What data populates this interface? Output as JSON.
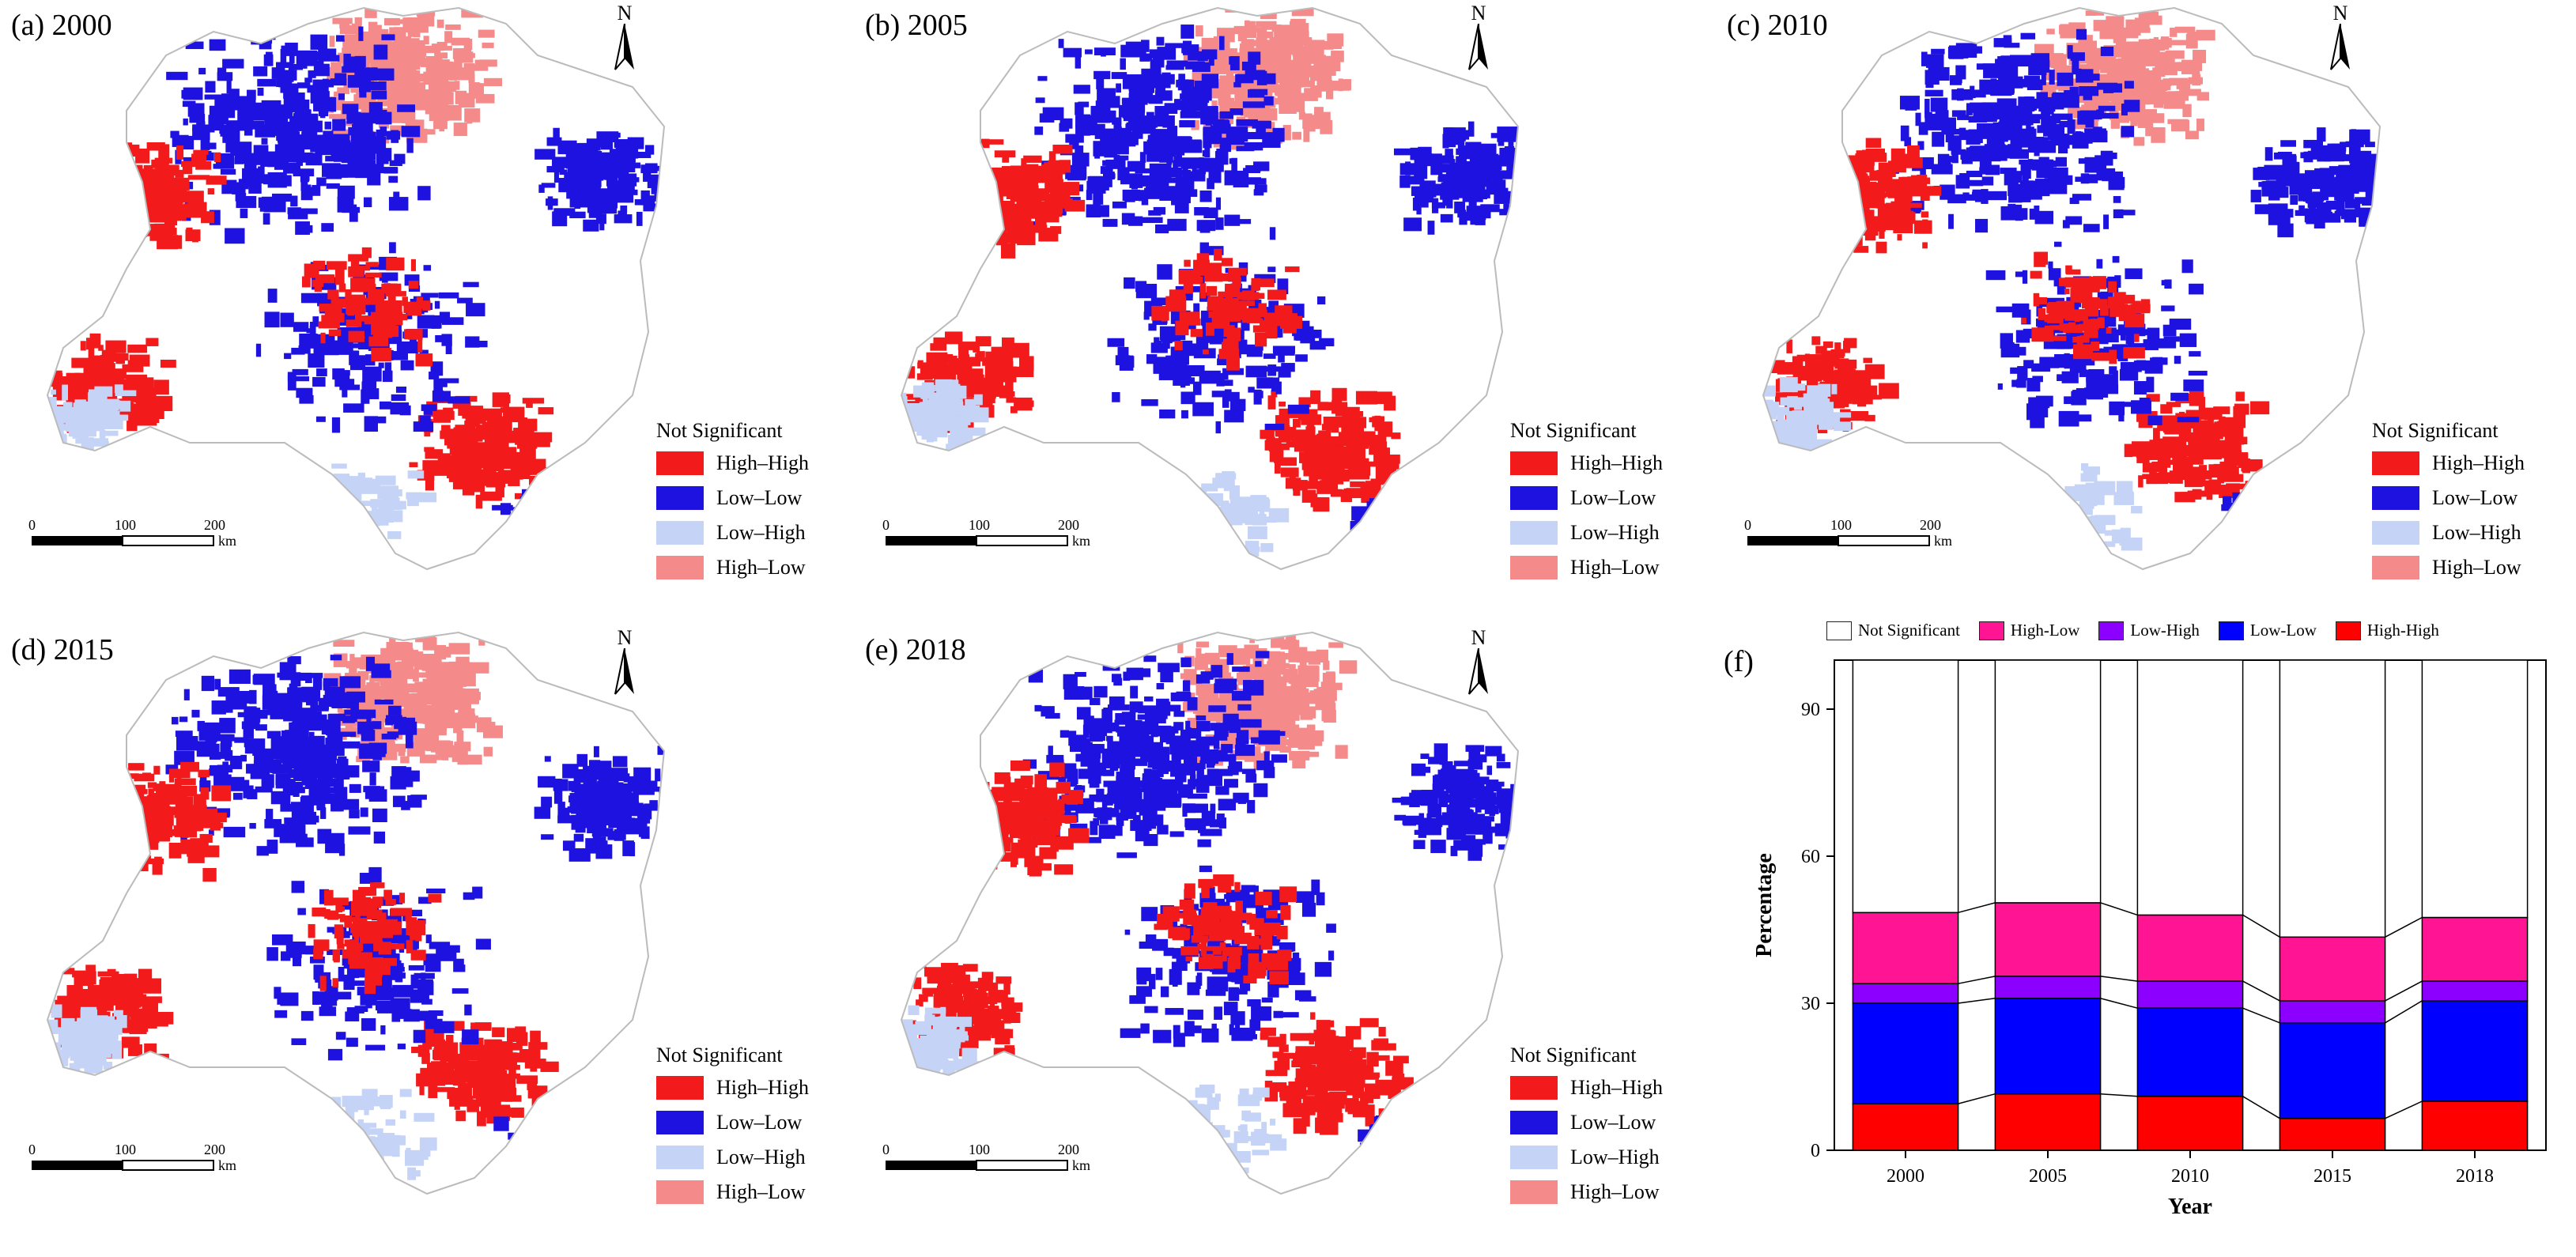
{
  "panels": [
    {
      "label": "(a) 2000"
    },
    {
      "label": "(b) 2005"
    },
    {
      "label": "(c) 2010"
    },
    {
      "label": "(d) 2015"
    },
    {
      "label": "(e) 2018"
    }
  ],
  "north_label": "N",
  "legend": {
    "title": "Not Significant",
    "items": [
      {
        "label": "High–High",
        "color": "#f21a1a"
      },
      {
        "label": "Low–Low",
        "color": "#1e12e0"
      },
      {
        "label": "Low–High",
        "color": "#c4d3f6"
      },
      {
        "label": "High–Low",
        "color": "#f58a8a"
      }
    ]
  },
  "scale": {
    "ticks": [
      "0",
      "100",
      "200"
    ],
    "unit": "km"
  },
  "chart_panel_label": "(f)",
  "chart_data": {
    "type": "bar",
    "stacked": true,
    "categories": [
      "2000",
      "2005",
      "2010",
      "2015",
      "2018"
    ],
    "series": [
      {
        "name": "High-High",
        "color": "#ff0000",
        "values": [
          9.5,
          11.5,
          11,
          6.5,
          10
        ]
      },
      {
        "name": "Low-Low",
        "color": "#0000ff",
        "values": [
          20.5,
          19.5,
          18,
          19.5,
          20.5
        ]
      },
      {
        "name": "Low-High",
        "color": "#8b00ff",
        "values": [
          4,
          4.5,
          5.5,
          4.5,
          4
        ]
      },
      {
        "name": "High-Low",
        "color": "#ff1493",
        "values": [
          14.5,
          15,
          13.5,
          13,
          13
        ]
      },
      {
        "name": "Not Significant",
        "color": "#ffffff",
        "values": [
          51.5,
          49.5,
          52,
          56.5,
          52.5
        ]
      }
    ],
    "legend_order": [
      "Not Significant",
      "High-Low",
      "Low-High",
      "Low-Low",
      "High-High"
    ],
    "xlabel": "Year",
    "ylabel": "Percentage",
    "yticks": [
      0,
      30,
      60,
      90
    ],
    "ylim": [
      0,
      100
    ]
  }
}
